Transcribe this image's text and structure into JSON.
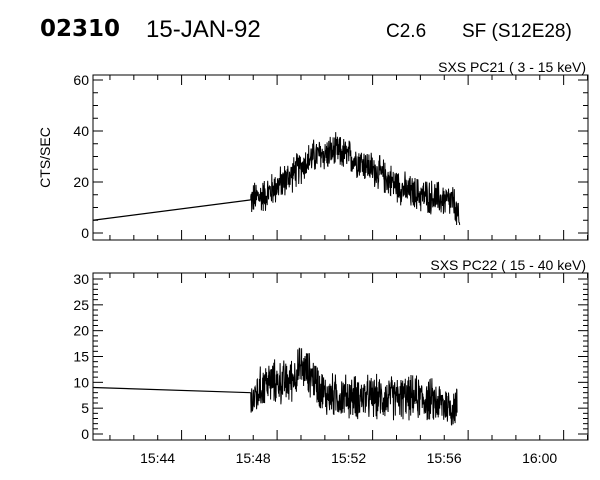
{
  "header": {
    "event_id": "02310",
    "date": "15-JAN-92",
    "goes_class": "C2.6",
    "location": "SF (S12E28)"
  },
  "chart_data": [
    {
      "type": "line",
      "title": "SXS PC21  (  3 - 15 keV)",
      "ylabel": "CTS/SEC",
      "xlabel": "",
      "x_units": "minutes after 15:40 UT",
      "xlim": [
        0.29,
        21.02
      ],
      "ylim": [
        0,
        60
      ],
      "yticks": [
        "0",
        "20",
        "40",
        "60"
      ],
      "ytick_values": [
        0,
        20,
        40,
        60
      ],
      "y_minor_step": 5,
      "baseline_segment": [
        [
          0.29,
          5
        ],
        [
          6.9,
          13
        ]
      ],
      "envelope": [
        [
          6.9,
          13
        ],
        [
          7.5,
          15
        ],
        [
          8.5,
          22
        ],
        [
          9.5,
          30
        ],
        [
          10.5,
          32
        ],
        [
          11.5,
          28
        ],
        [
          12.5,
          22
        ],
        [
          13.5,
          16
        ],
        [
          14.5,
          14
        ],
        [
          15.4,
          12
        ],
        [
          15.66,
          2
        ]
      ],
      "noise_amplitude": 8
    },
    {
      "type": "line",
      "title": "SXS PC22  ( 15 - 40 keV)",
      "ylabel": "",
      "xlabel": "",
      "x_units": "minutes after 15:40 UT",
      "xlim": [
        0.29,
        21.02
      ],
      "ylim": [
        0,
        30
      ],
      "yticks": [
        "0",
        "5",
        "10",
        "15",
        "20",
        "25",
        "30"
      ],
      "ytick_values": [
        0,
        5,
        10,
        15,
        20,
        25,
        30
      ],
      "y_minor_step": 1,
      "baseline_segment": [
        [
          0.29,
          9
        ],
        [
          6.9,
          8
        ]
      ],
      "envelope": [
        [
          6.9,
          6
        ],
        [
          7.5,
          10
        ],
        [
          8.5,
          10
        ],
        [
          9.0,
          13
        ],
        [
          9.5,
          11
        ],
        [
          10.0,
          7.5
        ],
        [
          12.0,
          7
        ],
        [
          14.0,
          7
        ],
        [
          15.55,
          5
        ]
      ],
      "noise_amplitude": 5,
      "xticks": [
        "15:44",
        "15:48",
        "15:52",
        "15:56",
        "16:00"
      ],
      "xtick_values": [
        4,
        8,
        12,
        16,
        20
      ]
    }
  ]
}
